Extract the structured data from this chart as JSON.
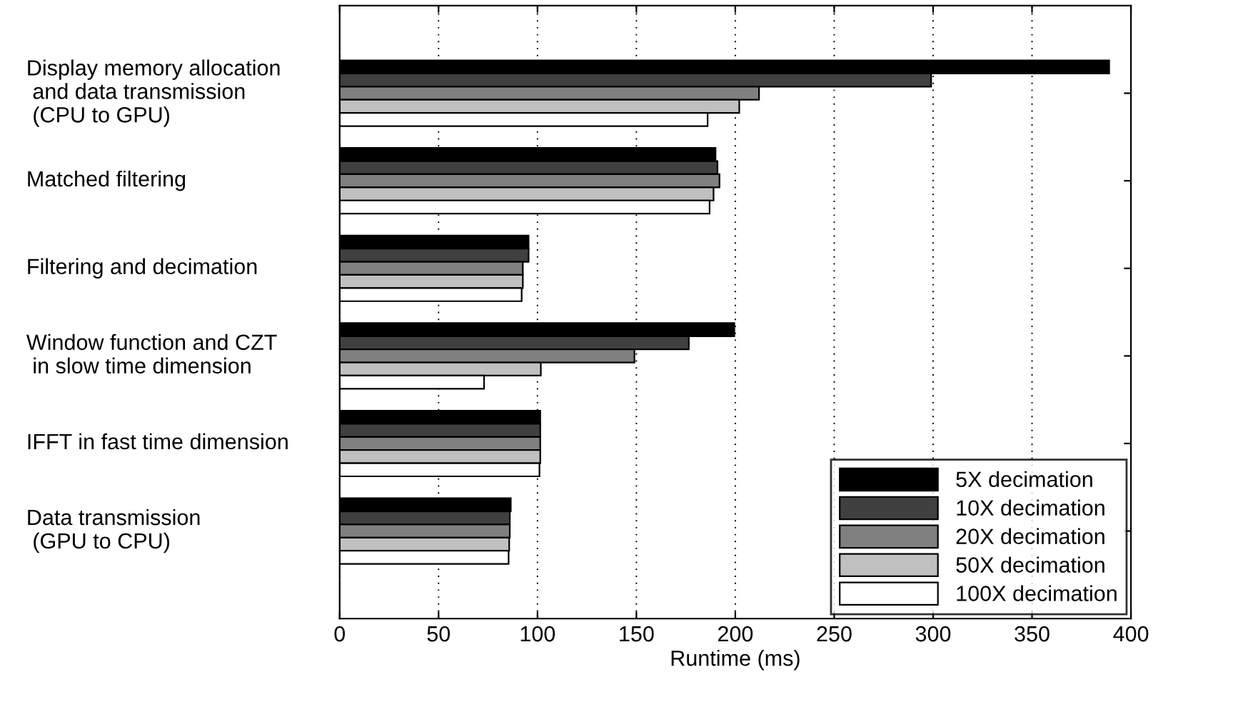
{
  "chart_data": {
    "type": "bar",
    "orientation": "horizontal",
    "xlabel": "Runtime (ms)",
    "categories": [
      "Display memory allocation\n and data transmission\n (CPU to GPU)",
      "Matched filtering",
      "Filtering and decimation",
      "Window function and CZT\n in slow time dimension",
      "IFFT in fast time dimension",
      "Data transmission\n (GPU to CPU)"
    ],
    "series": [
      {
        "name": "5X decimation",
        "color": "#000000",
        "values": [
          389,
          190,
          95.5,
          199.5,
          101.4,
          86.5
        ]
      },
      {
        "name": "10X decimation",
        "color": "#404040",
        "values": [
          299,
          191,
          95.5,
          176.5,
          101.4,
          86
        ]
      },
      {
        "name": "20X decimation",
        "color": "#808080",
        "values": [
          212,
          192,
          92.6,
          149,
          101.4,
          86
        ]
      },
      {
        "name": "50X decimation",
        "color": "#c0c0c0",
        "values": [
          202,
          189,
          92.6,
          101.7,
          101.4,
          85.7
        ]
      },
      {
        "name": "100X decimation",
        "color": "#ffffff",
        "values": [
          186,
          187,
          92,
          73,
          101,
          85.4
        ]
      }
    ],
    "xlim": [
      0,
      400
    ],
    "xticks": [
      0,
      50,
      100,
      150,
      200,
      250,
      300,
      350,
      400
    ],
    "grid": "x",
    "legend": "bottom right"
  }
}
